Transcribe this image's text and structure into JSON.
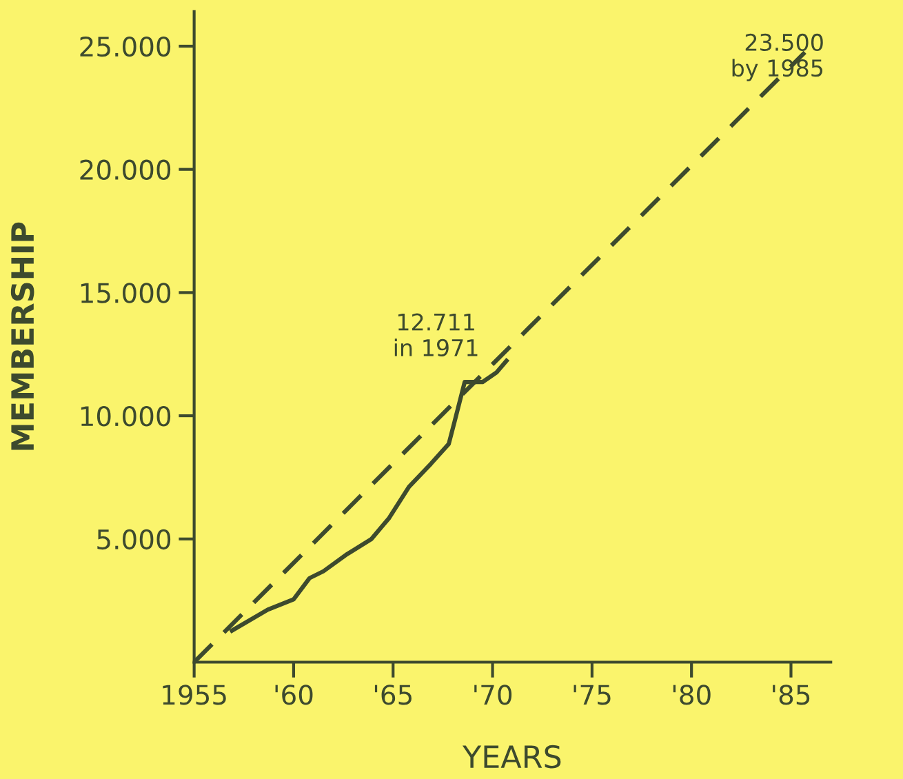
{
  "chart_data": {
    "type": "line",
    "xlabel": "YEARS",
    "ylabel": "MEMBERSHIP",
    "xlim": [
      1955,
      1987
    ],
    "ylim": [
      0,
      26400
    ],
    "xticks": [
      {
        "value": 1955,
        "label": "1955"
      },
      {
        "value": 1960,
        "label": "'60"
      },
      {
        "value": 1965,
        "label": "'65"
      },
      {
        "value": 1970,
        "label": "'70"
      },
      {
        "value": 1975,
        "label": "'75"
      },
      {
        "value": 1980,
        "label": "'80"
      },
      {
        "value": 1985,
        "label": "'85"
      }
    ],
    "yticks": [
      {
        "value": 5000,
        "label": "5.000"
      },
      {
        "value": 10000,
        "label": "10.000"
      },
      {
        "value": 15000,
        "label": "15.000"
      },
      {
        "value": 20000,
        "label": "20.000"
      },
      {
        "value": 25000,
        "label": "25.000"
      }
    ],
    "grid": false,
    "legend": false,
    "marker": "none",
    "series": [
      {
        "color": "#3d4a2e",
        "line_style": "solid",
        "x": [
          1956.9,
          1958.7,
          1960,
          1960.8,
          1961.5,
          1962.7,
          1963.9,
          1964.8,
          1965.8,
          1966.9,
          1967.8,
          1968.1,
          1968.6,
          1969.5,
          1970.2,
          1970.7
        ],
        "values": [
          1280,
          2130,
          2550,
          3410,
          3690,
          4390,
          4990,
          5850,
          7120,
          8050,
          8860,
          9790,
          11370,
          11370,
          11760,
          12230
        ]
      },
      {
        "color": "#3d4a2e",
        "line_style": "dashed",
        "x": [
          1955,
          1985.7
        ],
        "values": [
          0,
          24750
        ]
      }
    ],
    "annotations": [
      "12.711\nin 1971",
      "23.500\nby 1985"
    ]
  }
}
